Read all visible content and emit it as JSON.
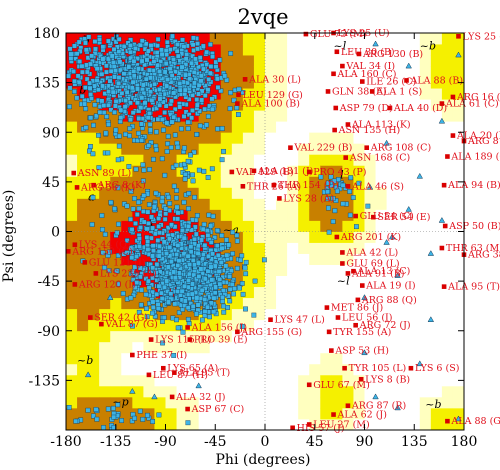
{
  "chart_data": {
    "type": "scatter",
    "title": "2vqe",
    "xlabel": "Phi (degrees)",
    "ylabel": "Psi (degrees)",
    "xlim": [
      -180,
      180
    ],
    "ylim": [
      -180,
      180
    ],
    "x_ticks": [
      -180,
      -135,
      -90,
      -45,
      0,
      45,
      90,
      135,
      180
    ],
    "y_ticks": [
      -135,
      -90,
      -45,
      0,
      45,
      90,
      135,
      180
    ],
    "x_tick_labels": [
      "-180",
      "-135",
      "-90",
      "-45",
      "0",
      "45",
      "90",
      "135",
      "180"
    ],
    "y_tick_labels": [
      "-135",
      "-90",
      "-45",
      "0",
      "45",
      "90",
      "135",
      "180"
    ],
    "zero_lines": true,
    "region_colors": {
      "most_favoured": "#f20000",
      "additional_allowed": "#c88000",
      "generous_allowed": "#f5f000",
      "disallowed_light": "#ffffbf",
      "background": "#ffffff"
    },
    "region_letters": [
      {
        "text": "b",
        "x": -165,
        "y": 170
      },
      {
        "text": "b",
        "x": -168,
        "y": 125
      },
      {
        "text": "a",
        "x": -160,
        "y": 28
      },
      {
        "text": "~a",
        "x": -115,
        "y": 5
      },
      {
        "text": "~l",
        "x": 62,
        "y": 165
      },
      {
        "text": "~b",
        "x": 140,
        "y": 165
      },
      {
        "text": "l",
        "x": 68,
        "y": 48
      },
      {
        "text": "~a",
        "x": -38,
        "y": -2
      },
      {
        "text": "~p",
        "x": -138,
        "y": -158
      },
      {
        "text": "~b",
        "x": -170,
        "y": -120
      },
      {
        "text": "~b",
        "x": 145,
        "y": -160
      },
      {
        "text": "~l",
        "x": 65,
        "y": -48
      }
    ],
    "point_colors": {
      "general": "#3cb4e6",
      "glycine": "#3cb4e6",
      "outlier": "#d90000",
      "label": "#e0101c"
    },
    "labeled_residues": [
      {
        "name": "GLU 75 (M)",
        "x": 37,
        "y": 179
      },
      {
        "name": "LYS 25 (U)",
        "x": 62,
        "y": 180
      },
      {
        "name": "LYS 25 (X)",
        "x": 175,
        "y": 177
      },
      {
        "name": "LEU 30 (B)",
        "x": 65,
        "y": 163
      },
      {
        "name": "ARG 130 (B)",
        "x": 85,
        "y": 161
      },
      {
        "name": "VAL 34 (I)",
        "x": 70,
        "y": 150
      },
      {
        "name": "ALA 160 (C)",
        "x": 62,
        "y": 143
      },
      {
        "name": "ALA 30 (L)",
        "x": -18,
        "y": 138
      },
      {
        "name": "ILE 26 (C)",
        "x": 88,
        "y": 136
      },
      {
        "name": "ALA 88 (B)",
        "x": 128,
        "y": 137
      },
      {
        "name": "GLN 38 (E)",
        "x": 57,
        "y": 127
      },
      {
        "name": "ALA 1 (S)",
        "x": 97,
        "y": 127
      },
      {
        "name": "LEU 129 (G)",
        "x": -24,
        "y": 124
      },
      {
        "name": "ALA 100 (B)",
        "x": -25,
        "y": 116
      },
      {
        "name": "ALA 40 (D)",
        "x": 113,
        "y": 112
      },
      {
        "name": "ARG 16 (C)",
        "x": 170,
        "y": 122
      },
      {
        "name": "ALA 61 (C)",
        "x": 160,
        "y": 116
      },
      {
        "name": "ASP 79 (D)",
        "x": 64,
        "y": 112
      },
      {
        "name": "ALA 113 (K)",
        "x": 75,
        "y": 97
      },
      {
        "name": "ASN 135 (H)",
        "x": 63,
        "y": 92
      },
      {
        "name": "VAL 229 (B)",
        "x": 23,
        "y": 76
      },
      {
        "name": "ARG 108 (C)",
        "x": 92,
        "y": 76
      },
      {
        "name": "ALA 20 (B)",
        "x": 170,
        "y": 87
      },
      {
        "name": "ARG 8 (Q)",
        "x": 180,
        "y": 82
      },
      {
        "name": "ASN 168 (C)",
        "x": 73,
        "y": 67
      },
      {
        "name": "ALA 189 (C)",
        "x": 165,
        "y": 68
      },
      {
        "name": "ASN 89 (L)",
        "x": -173,
        "y": 53
      },
      {
        "name": "VAL 129 (B)",
        "x": -30,
        "y": 54
      },
      {
        "name": "ALA 131 (J)",
        "x": -10,
        "y": 55
      },
      {
        "name": "PRO 43 (P)",
        "x": 40,
        "y": 54
      },
      {
        "name": "ARG 8 (K)",
        "x": -155,
        "y": 42
      },
      {
        "name": "ARG 56 (K)",
        "x": -170,
        "y": 40
      },
      {
        "name": "THR 26 (A)",
        "x": -20,
        "y": 41
      },
      {
        "name": "THR 154 (D)",
        "x": 8,
        "y": 42
      },
      {
        "name": "LYS 28 (A)",
        "x": 13,
        "y": 30
      },
      {
        "name": "ALA 46 (S)",
        "x": 75,
        "y": 41
      },
      {
        "name": "ALA 94 (B)",
        "x": 162,
        "y": 42
      },
      {
        "name": "SER 54 (E)",
        "x": 98,
        "y": 13
      },
      {
        "name": "GLU 54 (C)",
        "x": 82,
        "y": 14
      },
      {
        "name": "ASP 50 (B)",
        "x": 163,
        "y": 5
      },
      {
        "name": "ARG 201 (K)",
        "x": 65,
        "y": -5
      },
      {
        "name": "LYS 44 (Q)",
        "x": -172,
        "y": -12
      },
      {
        "name": "ARG 150 (C)",
        "x": -178,
        "y": -18
      },
      {
        "name": "GLU 121 (J)",
        "x": -163,
        "y": -28
      },
      {
        "name": "ALA 42 (L)",
        "x": 70,
        "y": -19
      },
      {
        "name": "THR 63 (M)",
        "x": 160,
        "y": -15
      },
      {
        "name": "ARG 38 (I)",
        "x": 180,
        "y": -21
      },
      {
        "name": "GLU 69 (L)",
        "x": 70,
        "y": -29
      },
      {
        "name": "ALA 13 (C)",
        "x": 80,
        "y": -36
      },
      {
        "name": "LYS 239 (A)",
        "x": -153,
        "y": -38
      },
      {
        "name": "ALA 91 (B)",
        "x": 75,
        "y": -38
      },
      {
        "name": "ARG 120 (I)",
        "x": -172,
        "y": -48
      },
      {
        "name": "ALA 19 (I)",
        "x": 88,
        "y": -49
      },
      {
        "name": "ALA 95 (T)",
        "x": 162,
        "y": -50
      },
      {
        "name": "ARG 88 (Q)",
        "x": 84,
        "y": -62
      },
      {
        "name": "MET 86 (J)",
        "x": 56,
        "y": -69
      },
      {
        "name": "SER 42 (G)",
        "x": -158,
        "y": -78
      },
      {
        "name": "VAL 87 (G)",
        "x": -148,
        "y": -84
      },
      {
        "name": "LYS 47 (L)",
        "x": 5,
        "y": -80
      },
      {
        "name": "LEU 56 (I)",
        "x": 66,
        "y": -78
      },
      {
        "name": "ARG 72 (J)",
        "x": 82,
        "y": -85
      },
      {
        "name": "ALA 156 (J)",
        "x": -70,
        "y": -87
      },
      {
        "name": "TYR 155 (A)",
        "x": 58,
        "y": -91
      },
      {
        "name": "ARG 155 (G)",
        "x": -25,
        "y": -91
      },
      {
        "name": "LYS 115 (L)",
        "x": -103,
        "y": -98
      },
      {
        "name": "PRO 39 (E)",
        "x": -68,
        "y": -98
      },
      {
        "name": "ASP 53 (H)",
        "x": 60,
        "y": -108
      },
      {
        "name": "PHE 37 (I)",
        "x": -120,
        "y": -112
      },
      {
        "name": "TYR 105 (L)",
        "x": 72,
        "y": -124
      },
      {
        "name": "LYS 6 (S)",
        "x": 132,
        "y": -124
      },
      {
        "name": "LYS 65 (A)",
        "x": -92,
        "y": -124
      },
      {
        "name": "ALA 95 (T)",
        "x": -82,
        "y": -128
      },
      {
        "name": "LYS 8 (B)",
        "x": 87,
        "y": -134
      },
      {
        "name": "LEU 87 (H)",
        "x": -105,
        "y": -130
      },
      {
        "name": "GLU 67 (M)",
        "x": 40,
        "y": -139
      },
      {
        "name": "ALA 32 (J)",
        "x": -84,
        "y": -150
      },
      {
        "name": "ASP 67 (C)",
        "x": -70,
        "y": -161
      },
      {
        "name": "ARG 87 (R)",
        "x": 75,
        "y": -158
      },
      {
        "name": "ALA 62 (J)",
        "x": 62,
        "y": -166
      },
      {
        "name": "ALA 88 (G)",
        "x": 165,
        "y": -172
      },
      {
        "name": "LEU 27 (M)",
        "x": 40,
        "y": -175
      },
      {
        "name": "HIS 57 (J)",
        "x": 25,
        "y": -178
      }
    ]
  }
}
